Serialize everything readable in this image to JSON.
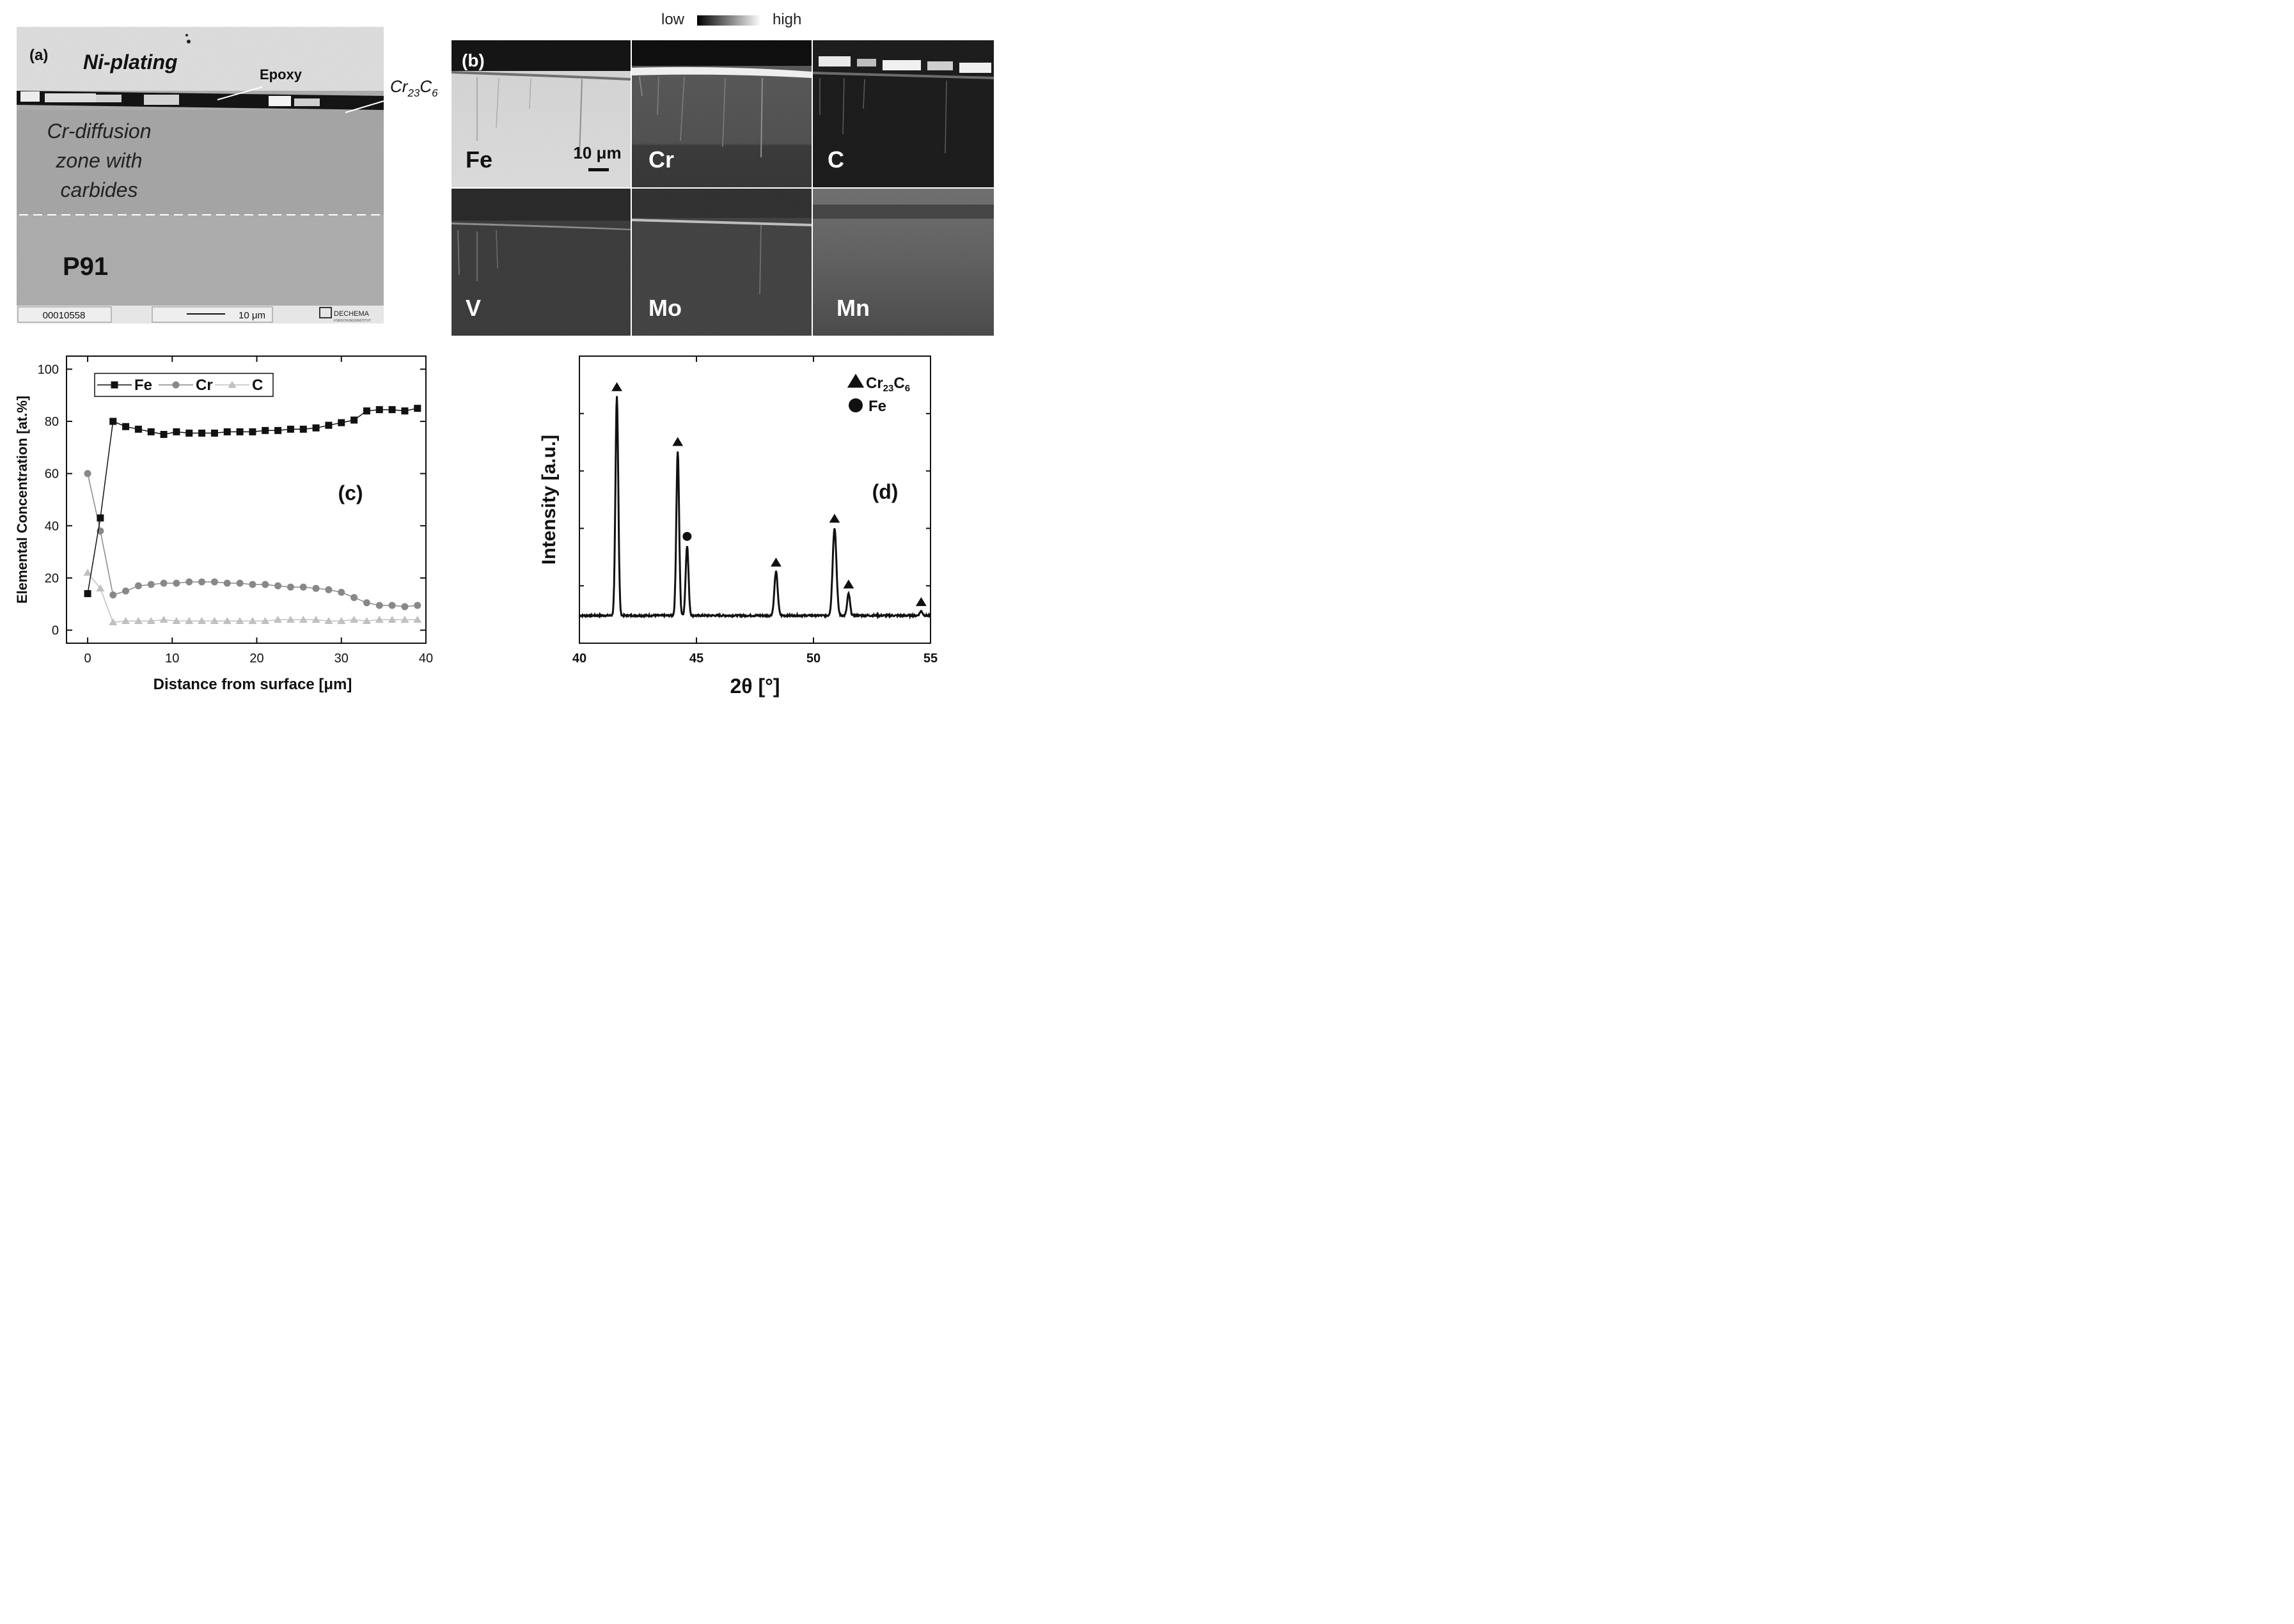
{
  "panel_a": {
    "label": "(a)",
    "ni_plating": "Ni-plating",
    "epoxy": "Epoxy",
    "carbide_base": "Cr",
    "carbide_sub1": "23",
    "carbide_mid": "C",
    "carbide_sub2": "6",
    "diffusion_line1": "Cr-diffusion",
    "diffusion_line2": "zone with",
    "diffusion_line3": "carbides",
    "substrate": "P91",
    "footer_id": "00010558",
    "scale_bar": "10 μm",
    "logo_text": "DECHEMA",
    "logo_sub": "FORSCHUNGSINSTITUT"
  },
  "panel_b": {
    "label": "(b)",
    "legend_low": "low",
    "legend_high": "high",
    "scale_bar": "10 μm",
    "maps": [
      "Fe",
      "Cr",
      "C",
      "V",
      "Mo",
      "Mn"
    ]
  },
  "chart_data": [
    {
      "type": "line",
      "panel_label": "(c)",
      "xlabel": "Distance from surface [μm]",
      "ylabel": "Elemental Concentration [at.%]",
      "xlim": [
        -2.5,
        40
      ],
      "ylim": [
        -5,
        105
      ],
      "xticks": [
        0,
        10,
        20,
        30,
        40
      ],
      "yticks": [
        0,
        20,
        40,
        60,
        80,
        100
      ],
      "legend_position": "top-left",
      "series": [
        {
          "name": "Fe",
          "marker": "square",
          "color": "#111111",
          "x": [
            0,
            1.5,
            3,
            4.5,
            6,
            7.5,
            9,
            10.5,
            12,
            13.5,
            15,
            16.5,
            18,
            19.5,
            21,
            22.5,
            24,
            25.5,
            27,
            28.5,
            30,
            31.5,
            33,
            34.5,
            36,
            37.5,
            39
          ],
          "y": [
            14,
            43,
            80,
            78,
            77,
            76,
            75,
            76,
            75.5,
            75.5,
            75.5,
            76,
            76,
            76,
            76.5,
            76.5,
            77,
            77,
            77.5,
            78.5,
            79.5,
            80.5,
            84,
            84.5,
            84.5,
            84,
            85
          ]
        },
        {
          "name": "Cr",
          "marker": "circle",
          "color": "#888888",
          "x": [
            0,
            1.5,
            3,
            4.5,
            6,
            7.5,
            9,
            10.5,
            12,
            13.5,
            15,
            16.5,
            18,
            19.5,
            21,
            22.5,
            24,
            25.5,
            27,
            28.5,
            30,
            31.5,
            33,
            34.5,
            36,
            37.5,
            39
          ],
          "y": [
            60,
            38,
            13.5,
            15,
            17,
            17.5,
            18,
            18,
            18.5,
            18.5,
            18.5,
            18,
            18,
            17.5,
            17.5,
            17,
            16.5,
            16.5,
            16,
            15.5,
            14.5,
            12.5,
            10.5,
            9.5,
            9.5,
            9,
            9.5
          ]
        },
        {
          "name": "C",
          "marker": "triangle",
          "color": "#c0c0c0",
          "x": [
            0,
            1.5,
            3,
            4.5,
            6,
            7.5,
            9,
            10.5,
            12,
            13.5,
            15,
            16.5,
            18,
            19.5,
            21,
            22.5,
            24,
            25.5,
            27,
            28.5,
            30,
            31.5,
            33,
            34.5,
            36,
            37.5,
            39
          ],
          "y": [
            22,
            16,
            3,
            3.5,
            3.5,
            3.5,
            4,
            3.5,
            3.5,
            3.5,
            3.5,
            3.5,
            3.5,
            3.5,
            3.5,
            4,
            4,
            4,
            4,
            3.5,
            3.5,
            4,
            3.5,
            4,
            4,
            4,
            4
          ]
        }
      ]
    },
    {
      "type": "line",
      "panel_label": "(d)",
      "xlabel": "2θ [°]",
      "ylabel": "Intensity [a.u.]",
      "xlim": [
        40,
        55
      ],
      "xticks": [
        40,
        45,
        50,
        55
      ],
      "legend_position": "top-right",
      "legend": [
        {
          "symbol": "triangle",
          "name": "Cr23C6",
          "base": "Cr",
          "sub1": "23",
          "mid": "C",
          "sub2": "6"
        },
        {
          "symbol": "circle",
          "name": "Fe",
          "base": "Fe"
        }
      ],
      "baseline": 0.03,
      "peaks": [
        {
          "x": 41.6,
          "height": 1.0,
          "width": 0.06,
          "phase": "Cr23C6"
        },
        {
          "x": 44.2,
          "height": 0.75,
          "width": 0.06,
          "phase": "Cr23C6"
        },
        {
          "x": 44.6,
          "height": 0.32,
          "width": 0.06,
          "phase": "Fe"
        },
        {
          "x": 48.4,
          "height": 0.2,
          "width": 0.07,
          "phase": "Cr23C6"
        },
        {
          "x": 50.9,
          "height": 0.4,
          "width": 0.08,
          "phase": "Cr23C6"
        },
        {
          "x": 51.5,
          "height": 0.1,
          "width": 0.06,
          "phase": "Cr23C6"
        },
        {
          "x": 54.6,
          "height": 0.02,
          "width": 0.06,
          "phase": "Cr23C6"
        }
      ]
    }
  ]
}
